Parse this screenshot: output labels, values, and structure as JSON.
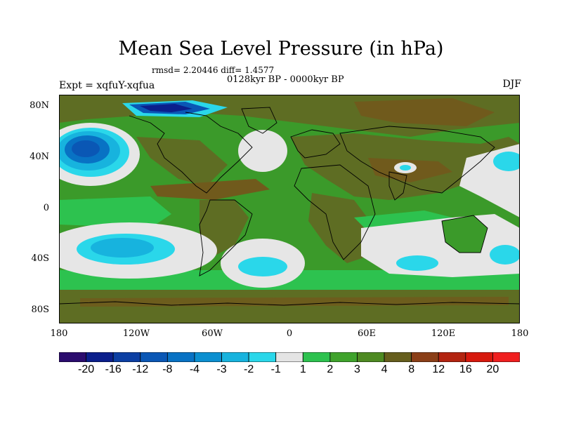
{
  "title": "Mean Sea Level Pressure (in hPa)",
  "stats": "rmsd= 2.20446 diff= 1.4577",
  "period": "0128kyr BP - 0000kyr BP",
  "experiment": "Expt = xqfuY-xqfua",
  "season": "DJF",
  "lat_labels": [
    "80N",
    "40N",
    "0",
    "40S",
    "80S"
  ],
  "lon_labels": [
    "180",
    "120W",
    "60W",
    "0",
    "60E",
    "120E",
    "180"
  ],
  "colorbar": {
    "levels": [
      "-20",
      "-16",
      "-12",
      "-8",
      "-4",
      "-3",
      "-2",
      "-1",
      "1",
      "2",
      "3",
      "4",
      "8",
      "12",
      "16",
      "20"
    ],
    "colors": [
      "#2b0c6e",
      "#0b1f8c",
      "#0c3fa3",
      "#0a57b5",
      "#0872c4",
      "#0b8fd0",
      "#17b3de",
      "#2ad7ea",
      "#e4e4e4",
      "#2dc24f",
      "#3fa32c",
      "#4e8a22",
      "#665e1d",
      "#8b3f18",
      "#b32410",
      "#d7190d",
      "#f01f1f"
    ]
  },
  "map_colors": {
    "background": "#3b9a2a",
    "dark_olive": "#5e6d23",
    "brown": "#705a1c",
    "green": "#2dc24f",
    "white": "#e6e6e6",
    "cyan": "#2ad7ea",
    "light_blue": "#17b3de",
    "blue": "#0872c4",
    "dark_blue": "#0b1f8c"
  }
}
